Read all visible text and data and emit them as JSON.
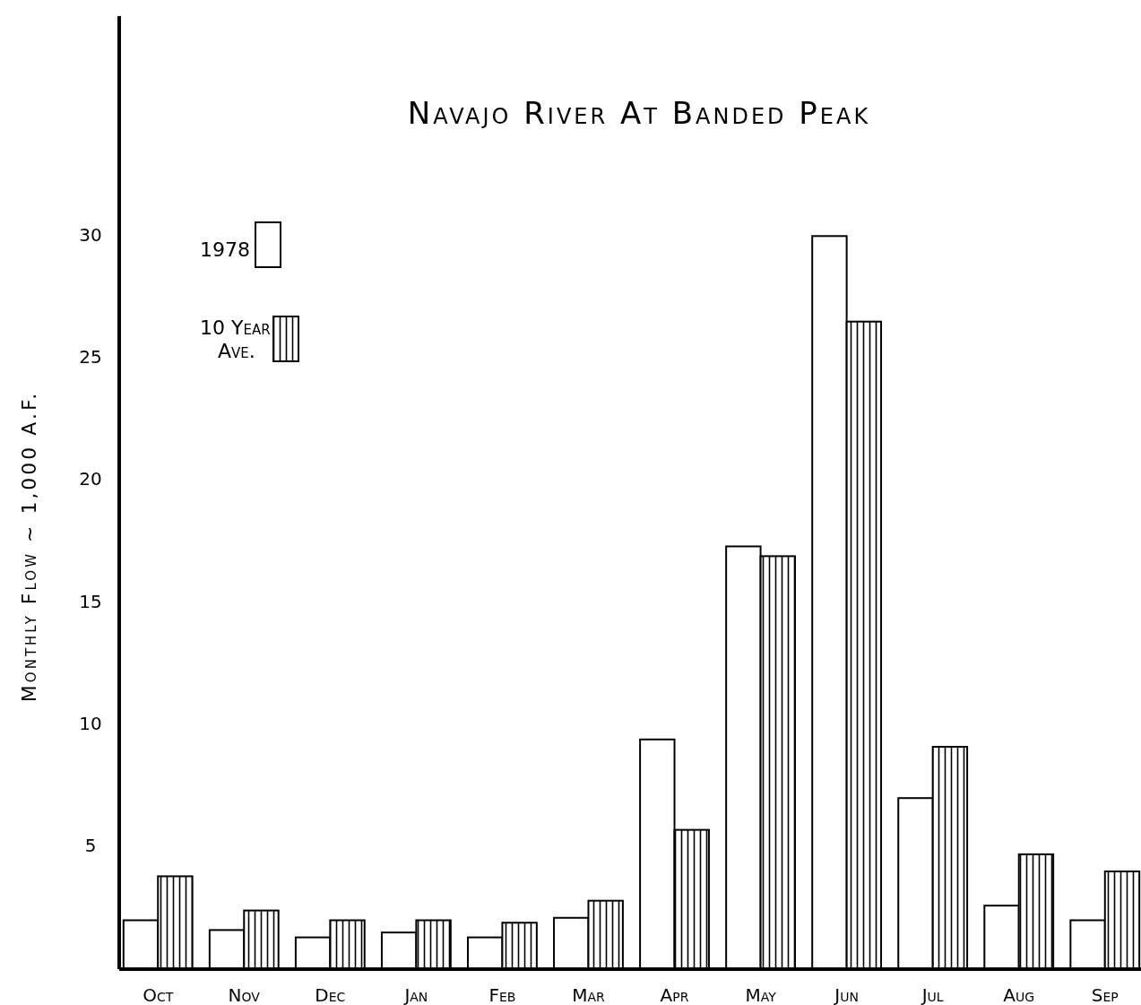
{
  "chart_data": {
    "type": "bar",
    "title": "Navajo River At Banded Peak",
    "ylabel": "Monthly Flow ~ 1,000 A.F.",
    "categories": [
      "Oct",
      "Nov",
      "Dec",
      "Jan",
      "Feb",
      "Mar",
      "Apr",
      "May",
      "Jun",
      "Jul",
      "Aug",
      "Sep"
    ],
    "series": [
      {
        "name": "1978",
        "color": "#ffffff",
        "values": [
          2.0,
          1.6,
          1.3,
          1.5,
          1.3,
          2.1,
          9.4,
          17.3,
          30.0,
          7.0,
          2.6,
          2.0
        ]
      },
      {
        "name": "10 Year Ave.",
        "color": "#000000",
        "values": [
          3.8,
          2.4,
          2.0,
          2.0,
          1.9,
          2.8,
          5.7,
          16.9,
          26.5,
          9.1,
          4.7,
          4.0
        ]
      }
    ],
    "ylim": [
      0,
      39
    ],
    "yticks": [
      5,
      10,
      15,
      20,
      25,
      30
    ],
    "grid": false,
    "legend": "top left"
  }
}
